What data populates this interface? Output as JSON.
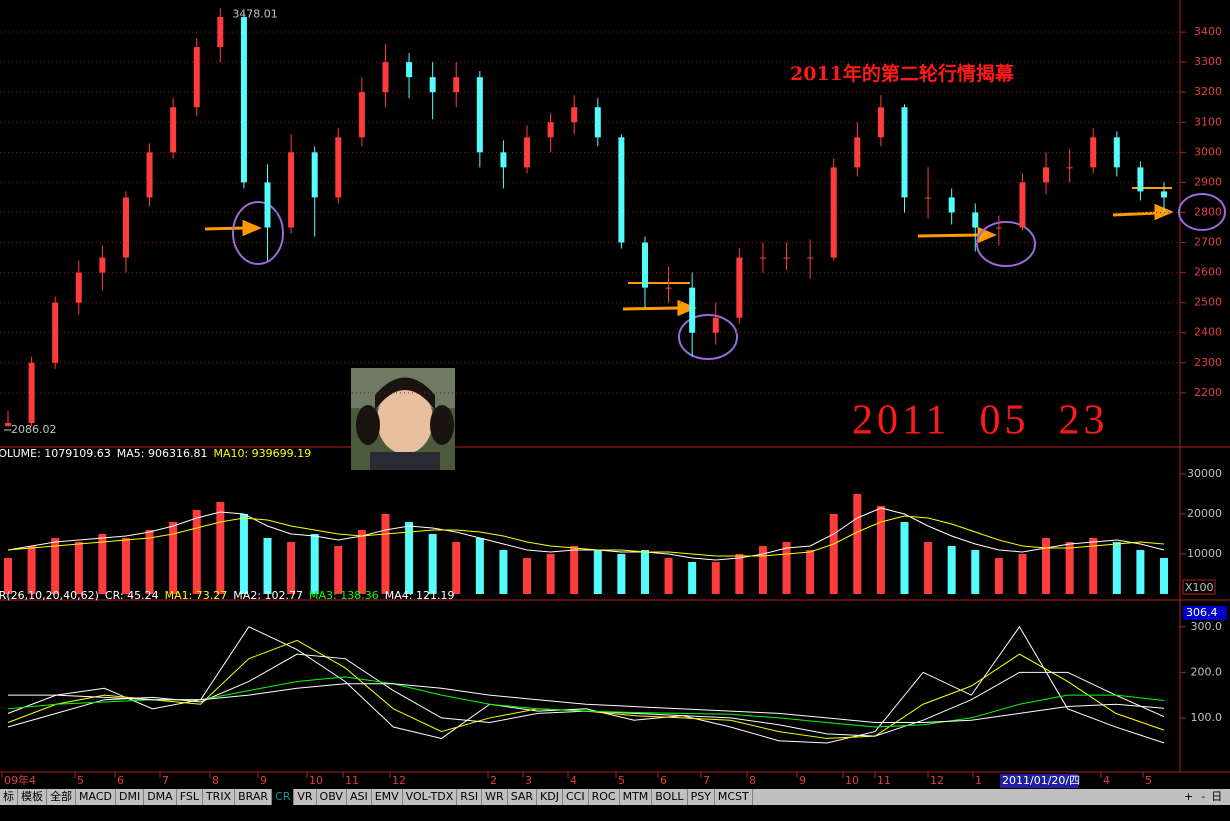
{
  "chart_data": [
    {
      "type": "candlestick",
      "title": "2011年的第二轮行情揭幕",
      "annotation": "2011  05  23",
      "open": [
        2090,
        2100,
        2300,
        2500,
        2600,
        2650,
        2850,
        3000,
        3150,
        3350,
        3450,
        2900,
        2750,
        3000,
        2850,
        3050,
        3200,
        3300,
        3250,
        3200,
        3250,
        3000,
        2950,
        3050,
        3100,
        3150,
        3050,
        2700,
        2550,
        2550,
        2400,
        2450,
        2650,
        2650,
        2650,
        2650,
        2950,
        3050,
        3150,
        2850,
        2850,
        2800,
        2750,
        2750,
        2900,
        2950,
        2950,
        3050,
        2950,
        2870
      ],
      "high": [
        2140,
        2320,
        2520,
        2640,
        2690,
        2870,
        3030,
        3180,
        3380,
        3478.01,
        3460,
        2960,
        3060,
        3020,
        3080,
        3250,
        3360,
        3330,
        3300,
        3300,
        3270,
        3040,
        3090,
        3130,
        3190,
        3180,
        3060,
        2720,
        2620,
        2600,
        2500,
        2680,
        2700,
        2700,
        2710,
        2980,
        3100,
        3190,
        3160,
        2950,
        2880,
        2830,
        2790,
        2930,
        3000,
        3010,
        3080,
        3070,
        2970,
        2900
      ],
      "low": [
        2086.02,
        2090,
        2280,
        2460,
        2540,
        2600,
        2820,
        2980,
        3120,
        3300,
        2880,
        2640,
        2730,
        2720,
        2830,
        3020,
        3150,
        3180,
        3110,
        3150,
        2950,
        2880,
        2930,
        3000,
        3060,
        3020,
        2680,
        2480,
        2500,
        2320,
        2360,
        2430,
        2600,
        2610,
        2580,
        2640,
        2920,
        3020,
        2800,
        2780,
        2760,
        2670,
        2690,
        2740,
        2860,
        2900,
        2930,
        2920,
        2840,
        2800
      ],
      "close": [
        2100,
        2300,
        2500,
        2600,
        2650,
        2850,
        3000,
        3150,
        3350,
        3450,
        2900,
        2750,
        3000,
        2850,
        3050,
        3200,
        3300,
        3250,
        3200,
        3250,
        3000,
        2950,
        3050,
        3100,
        3150,
        3050,
        2700,
        2550,
        2550,
        2400,
        2450,
        2650,
        2650,
        2650,
        2650,
        2950,
        3050,
        3150,
        2850,
        2850,
        2800,
        2750,
        2750,
        2900,
        2950,
        2950,
        3050,
        2950,
        2870,
        2850
      ],
      "up_color": "#ff3c3c",
      "down_color": "#54fcfc",
      "ylim": [
        2020,
        3500
      ],
      "yticks": [
        2200,
        2300,
        2400,
        2500,
        2600,
        2700,
        2800,
        2900,
        3000,
        3100,
        3200,
        3300,
        3400
      ],
      "grid": true
    },
    {
      "type": "bar",
      "header": [
        {
          "text": "VOLUME: 1079109.63",
          "color": "#ffffff"
        },
        {
          "text": "MA5: 906316.81",
          "color": "#ffffff"
        },
        {
          "text": "MA10: 939699.19",
          "color": "#ffff00"
        }
      ],
      "values": [
        9000,
        12000,
        14000,
        13000,
        15000,
        14000,
        16000,
        18000,
        21000,
        23000,
        20000,
        14000,
        13000,
        15000,
        12000,
        16000,
        20000,
        18000,
        15000,
        13000,
        14000,
        11000,
        9000,
        10000,
        12000,
        11000,
        10000,
        11000,
        9000,
        8000,
        8000,
        10000,
        12000,
        13000,
        11000,
        20000,
        25000,
        22000,
        18000,
        13000,
        12000,
        11000,
        9000,
        10000,
        14000,
        13000,
        14000,
        13000,
        11000,
        9000
      ],
      "series": [
        {
          "color": "#ffffff",
          "values": [
            11000,
            12000,
            13000,
            13500,
            14000,
            14500,
            15500,
            17000,
            19000,
            20500,
            20000,
            17000,
            15000,
            14500,
            13500,
            14500,
            16000,
            17000,
            16500,
            15500,
            14000,
            12500,
            11000,
            10500,
            11000,
            11000,
            10500,
            10500,
            10000,
            9000,
            8500,
            9000,
            10000,
            11500,
            12000,
            15000,
            19000,
            21500,
            20000,
            17000,
            14500,
            12500,
            11000,
            10500,
            11500,
            12500,
            13000,
            13500,
            12500,
            11000
          ]
        },
        {
          "color": "#ffff00",
          "values": [
            11000,
            11500,
            12000,
            12500,
            13000,
            13500,
            14000,
            15000,
            16500,
            18000,
            19000,
            18500,
            17000,
            16000,
            15000,
            14500,
            15000,
            15500,
            16000,
            16000,
            15500,
            14500,
            13000,
            12000,
            11500,
            11000,
            11000,
            10500,
            10500,
            10000,
            9500,
            9500,
            9500,
            10000,
            10500,
            12500,
            15500,
            18000,
            19500,
            19000,
            17500,
            15500,
            13500,
            12000,
            11500,
            11500,
            12000,
            12500,
            13000,
            12500
          ]
        }
      ],
      "ylim": [
        0,
        33000
      ],
      "yticks": [
        10000,
        20000,
        30000
      ],
      "grid": false,
      "unit": "X100"
    },
    {
      "type": "line",
      "header": [
        {
          "text": "CR(26,10,20,40,62)",
          "color": "#ffffff"
        },
        {
          "text": "CR: 45.24",
          "color": "#ffffff"
        },
        {
          "text": "MA1: 73.27",
          "color": "#ffff00"
        },
        {
          "text": "MA2: 102.77",
          "color": "#ffffff"
        },
        {
          "text": "MA3: 138.36",
          "color": "#00ff00"
        },
        {
          "text": "MA4: 121.19",
          "color": "#ffffff"
        }
      ],
      "series": [
        {
          "color": "#ffffff",
          "values": [
            110,
            150,
            165,
            120,
            140,
            300,
            250,
            180,
            80,
            55,
            130,
            115,
            120,
            95,
            105,
            80,
            50,
            45,
            70,
            200,
            150,
            300,
            120,
            80,
            45.24
          ]
        },
        {
          "color": "#ffff00",
          "values": [
            90,
            130,
            150,
            140,
            130,
            230,
            270,
            210,
            120,
            70,
            100,
            120,
            115,
            105,
            100,
            95,
            70,
            55,
            60,
            130,
            170,
            240,
            180,
            110,
            73.27
          ]
        },
        {
          "color": "#ffffff",
          "values": [
            80,
            110,
            140,
            145,
            135,
            180,
            240,
            230,
            160,
            100,
            90,
            110,
            115,
            110,
            105,
            100,
            85,
            65,
            60,
            95,
            140,
            200,
            200,
            150,
            102.77
          ]
        },
        {
          "color": "#00ff00",
          "values": [
            120,
            130,
            135,
            140,
            140,
            160,
            180,
            190,
            175,
            150,
            130,
            120,
            115,
            112,
            110,
            108,
            100,
            90,
            80,
            85,
            100,
            130,
            150,
            150,
            138.36
          ]
        },
        {
          "color": "#ffffff",
          "values": [
            150,
            150,
            145,
            140,
            140,
            150,
            165,
            175,
            175,
            165,
            150,
            140,
            130,
            125,
            120,
            115,
            110,
            100,
            90,
            90,
            95,
            110,
            125,
            130,
            121.19
          ]
        }
      ],
      "ylim": [
        0,
        350
      ],
      "yticks": [
        {
          "value": 100,
          "label": "100.0"
        },
        {
          "value": 200,
          "label": "200.0"
        },
        {
          "value": 300,
          "label": "300.0"
        }
      ],
      "grid": false,
      "axis_readout": 306.4
    }
  ],
  "x_axis": {
    "categories": [
      "09年4",
      "5",
      "6",
      "7",
      "8",
      "9",
      "10",
      "11",
      "12",
      "2",
      "3",
      "4",
      "5",
      "6",
      "7",
      "8",
      "9",
      "10",
      "11",
      "12",
      "1",
      "4",
      "5"
    ],
    "cursor_date": "2011/01/20/四"
  },
  "toolbar": [
    "标",
    "模板",
    "全部",
    "MACD",
    "DMI",
    "DMA",
    "FSL",
    "TRIX",
    "BRAR",
    "CR",
    "VR",
    "OBV",
    "ASI",
    "EMV",
    "VOL-TDX",
    "RSI",
    "WR",
    "SAR",
    "KDJ",
    "CCI",
    "ROC",
    "MTM",
    "BOLL",
    "PSY",
    "MCST"
  ],
  "active_tab": "CR",
  "buttons": [
    "+",
    "-"
  ],
  "period": "日线"
}
